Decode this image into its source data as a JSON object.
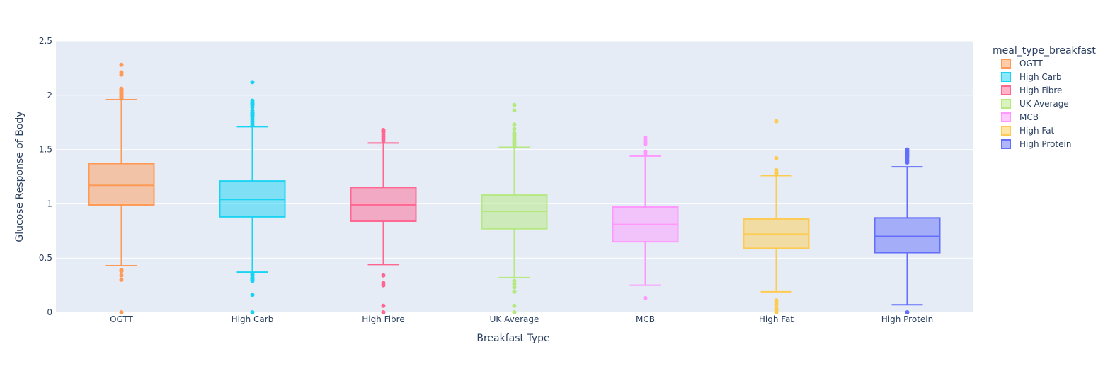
{
  "chart_data": {
    "type": "box",
    "xlabel": "Breakfast Type",
    "ylabel": "Glucose Response of Body",
    "ylim": [
      0,
      2.5
    ],
    "yticks": [
      0,
      0.5,
      1,
      1.5,
      2,
      2.5
    ],
    "ytick_labels": [
      "0",
      "0.5",
      "1",
      "1.5",
      "2",
      "2.5"
    ],
    "grid": true,
    "legend_title": "meal_type_breakfast",
    "legend_position": "right",
    "series": [
      {
        "name": "OGTT",
        "category": "OGTT",
        "color": "#FF9955",
        "q1": 0.99,
        "median": 1.17,
        "q3": 1.37,
        "lower_fence": 0.43,
        "upper_fence": 1.96,
        "outliers": [
          0.0,
          0.3,
          0.34,
          0.38,
          0.39,
          1.97,
          1.98,
          1.99,
          2.0,
          2.01,
          2.02,
          2.03,
          2.04,
          2.05,
          2.06,
          2.19,
          2.21,
          2.28
        ]
      },
      {
        "name": "High Carb",
        "category": "High Carb",
        "color": "#19D3F3",
        "q1": 0.88,
        "median": 1.04,
        "q3": 1.21,
        "lower_fence": 0.37,
        "upper_fence": 1.71,
        "outliers": [
          0.0,
          0.16,
          0.29,
          0.3,
          0.31,
          0.32,
          0.34,
          0.35,
          1.72,
          1.74,
          1.76,
          1.78,
          1.8,
          1.81,
          1.82,
          1.83,
          1.84,
          1.86,
          1.89,
          1.91,
          1.92,
          1.93,
          1.95,
          2.12
        ]
      },
      {
        "name": "High Fibre",
        "category": "High Fibre",
        "color": "#FF6692",
        "q1": 0.84,
        "median": 0.99,
        "q3": 1.15,
        "lower_fence": 0.44,
        "upper_fence": 1.56,
        "outliers": [
          0.0,
          0.06,
          0.25,
          0.27,
          0.34,
          1.58,
          1.6,
          1.62,
          1.64,
          1.66,
          1.67,
          1.68
        ]
      },
      {
        "name": "UK Average",
        "category": "UK Average",
        "color": "#B6E880",
        "q1": 0.77,
        "median": 0.93,
        "q3": 1.08,
        "lower_fence": 0.32,
        "upper_fence": 1.52,
        "outliers": [
          0.0,
          0.06,
          0.19,
          0.23,
          0.26,
          0.29,
          1.53,
          1.55,
          1.57,
          1.59,
          1.61,
          1.63,
          1.65,
          1.69,
          1.73,
          1.86,
          1.91
        ]
      },
      {
        "name": "MCB",
        "category": "MCB",
        "color": "#FF97FF",
        "q1": 0.65,
        "median": 0.81,
        "q3": 0.97,
        "lower_fence": 0.25,
        "upper_fence": 1.44,
        "outliers": [
          0.13,
          1.45,
          1.47,
          1.48,
          1.55,
          1.57,
          1.59,
          1.61
        ]
      },
      {
        "name": "High Fat",
        "category": "High Fat",
        "color": "#FECB52",
        "q1": 0.59,
        "median": 0.72,
        "q3": 0.86,
        "lower_fence": 0.19,
        "upper_fence": 1.26,
        "outliers": [
          0.0,
          0.02,
          0.04,
          0.07,
          0.09,
          0.11,
          1.28,
          1.29,
          1.31,
          1.42,
          1.76
        ]
      },
      {
        "name": "High Protein",
        "category": "High Protein",
        "color": "#636EFA",
        "q1": 0.55,
        "median": 0.7,
        "q3": 0.87,
        "lower_fence": 0.07,
        "upper_fence": 1.34,
        "outliers": [
          0.0,
          1.38,
          1.4,
          1.42,
          1.44,
          1.46,
          1.48,
          1.5
        ]
      }
    ]
  }
}
